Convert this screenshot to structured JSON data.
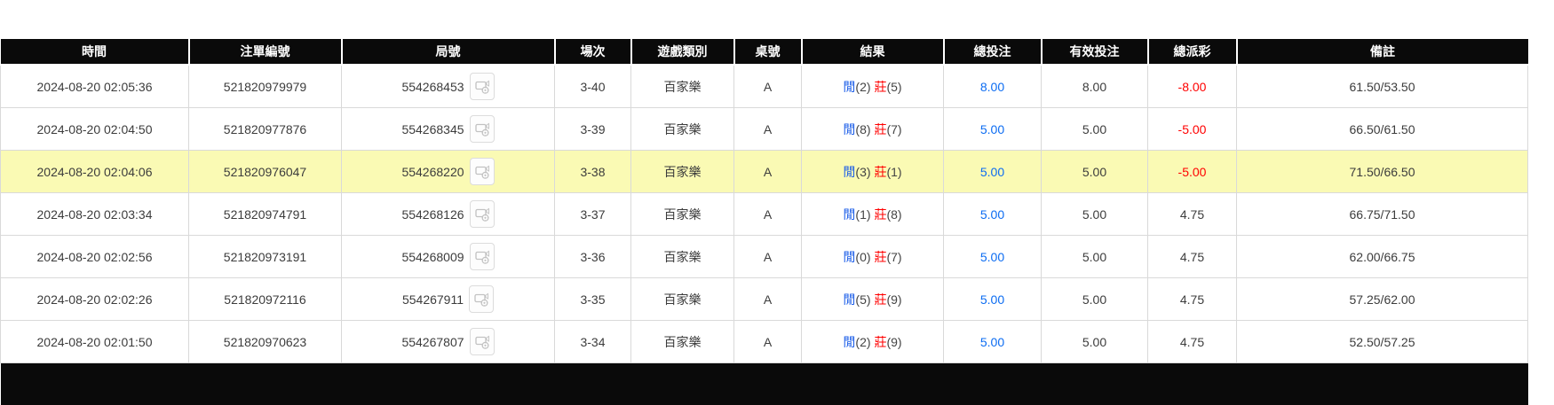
{
  "colors": {
    "header_bg": "#0a0a0a",
    "header_text": "#ffffff",
    "row_border": "#d9d9d9",
    "highlight_row_bg": "#fafab4",
    "player_blue": "#1a5ce8",
    "banker_red": "#ff0000",
    "bet_amount_blue": "#0c6cf2",
    "negative_payout_red": "#ff0000"
  },
  "icons": {
    "replay": "video-replay-icon"
  },
  "table": {
    "columns": [
      {
        "key": "time",
        "label": "時間"
      },
      {
        "key": "bet_id",
        "label": "注單編號"
      },
      {
        "key": "round_no",
        "label": "局號"
      },
      {
        "key": "session",
        "label": "場次"
      },
      {
        "key": "game_type",
        "label": "遊戲類別"
      },
      {
        "key": "table_no",
        "label": "桌號"
      },
      {
        "key": "result",
        "label": "結果"
      },
      {
        "key": "total_bet",
        "label": "總投注"
      },
      {
        "key": "valid_bet",
        "label": "有效投注"
      },
      {
        "key": "total_payout",
        "label": "總派彩"
      },
      {
        "key": "remark",
        "label": "備註"
      }
    ],
    "rows": [
      {
        "time": "2024-08-20 02:05:36",
        "bet_id": "521820979979",
        "round_no": "554268453",
        "session": "3-40",
        "game_type": "百家樂",
        "table_no": "A",
        "result": {
          "player_label": "閒",
          "player_score": "(2)",
          "banker_label": "莊",
          "banker_score": "(5)"
        },
        "total_bet": "8.00",
        "valid_bet": "8.00",
        "total_payout": "-8.00",
        "payout_negative": true,
        "remark": "61.50/53.50",
        "highlighted": false
      },
      {
        "time": "2024-08-20 02:04:50",
        "bet_id": "521820977876",
        "round_no": "554268345",
        "session": "3-39",
        "game_type": "百家樂",
        "table_no": "A",
        "result": {
          "player_label": "閒",
          "player_score": "(8)",
          "banker_label": "莊",
          "banker_score": "(7)"
        },
        "total_bet": "5.00",
        "valid_bet": "5.00",
        "total_payout": "-5.00",
        "payout_negative": true,
        "remark": "66.50/61.50",
        "highlighted": false
      },
      {
        "time": "2024-08-20 02:04:06",
        "bet_id": "521820976047",
        "round_no": "554268220",
        "session": "3-38",
        "game_type": "百家樂",
        "table_no": "A",
        "result": {
          "player_label": "閒",
          "player_score": "(3)",
          "banker_label": "莊",
          "banker_score": "(1)"
        },
        "total_bet": "5.00",
        "valid_bet": "5.00",
        "total_payout": "-5.00",
        "payout_negative": true,
        "remark": "71.50/66.50",
        "highlighted": true
      },
      {
        "time": "2024-08-20 02:03:34",
        "bet_id": "521820974791",
        "round_no": "554268126",
        "session": "3-37",
        "game_type": "百家樂",
        "table_no": "A",
        "result": {
          "player_label": "閒",
          "player_score": "(1)",
          "banker_label": "莊",
          "banker_score": "(8)"
        },
        "total_bet": "5.00",
        "valid_bet": "5.00",
        "total_payout": "4.75",
        "payout_negative": false,
        "remark": "66.75/71.50",
        "highlighted": false
      },
      {
        "time": "2024-08-20 02:02:56",
        "bet_id": "521820973191",
        "round_no": "554268009",
        "session": "3-36",
        "game_type": "百家樂",
        "table_no": "A",
        "result": {
          "player_label": "閒",
          "player_score": "(0)",
          "banker_label": "莊",
          "banker_score": "(7)"
        },
        "total_bet": "5.00",
        "valid_bet": "5.00",
        "total_payout": "4.75",
        "payout_negative": false,
        "remark": "62.00/66.75",
        "highlighted": false
      },
      {
        "time": "2024-08-20 02:02:26",
        "bet_id": "521820972116",
        "round_no": "554267911",
        "session": "3-35",
        "game_type": "百家樂",
        "table_no": "A",
        "result": {
          "player_label": "閒",
          "player_score": "(5)",
          "banker_label": "莊",
          "banker_score": "(9)"
        },
        "total_bet": "5.00",
        "valid_bet": "5.00",
        "total_payout": "4.75",
        "payout_negative": false,
        "remark": "57.25/62.00",
        "highlighted": false
      },
      {
        "time": "2024-08-20 02:01:50",
        "bet_id": "521820970623",
        "round_no": "554267807",
        "session": "3-34",
        "game_type": "百家樂",
        "table_no": "A",
        "result": {
          "player_label": "閒",
          "player_score": "(2)",
          "banker_label": "莊",
          "banker_score": "(9)"
        },
        "total_bet": "5.00",
        "valid_bet": "5.00",
        "total_payout": "4.75",
        "payout_negative": false,
        "remark": "52.50/57.25",
        "highlighted": false
      }
    ]
  }
}
